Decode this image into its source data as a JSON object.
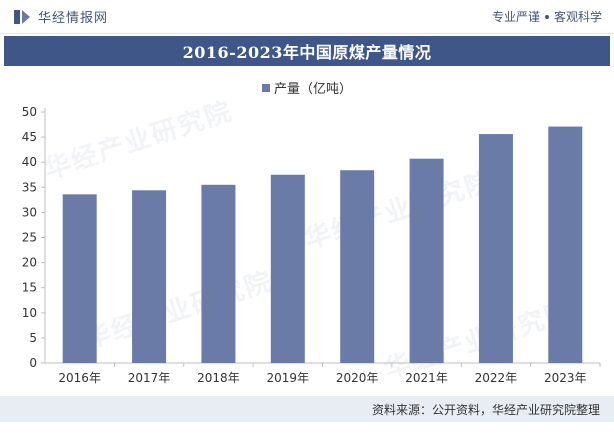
{
  "header": {
    "brand": "华经情报网",
    "tag1": "专业严谨",
    "tag2": "客观科学"
  },
  "title": "2016-2023年中国原煤产量情况",
  "source": "资料来源：公开资料，华经产业研究院整理",
  "watermark": "华经产业研究院",
  "colors": {
    "bar": "#6a7ba7",
    "title_bg": "#3f5689",
    "footer_bg": "#e8ecf3"
  },
  "chart_data": {
    "type": "bar",
    "categories": [
      "2016年",
      "2017年",
      "2018年",
      "2019年",
      "2020年",
      "2021年",
      "2022年",
      "2023年"
    ],
    "series": [
      {
        "name": "产量（亿吨）",
        "values": [
          33.6,
          34.4,
          35.5,
          37.5,
          38.4,
          40.7,
          45.6,
          47.1
        ]
      }
    ],
    "title": "2016-2023年中国原煤产量情况",
    "xlabel": "",
    "ylabel": "",
    "ylim": [
      0,
      50
    ],
    "yticks": [
      0,
      5,
      10,
      15,
      20,
      25,
      30,
      35,
      40,
      45,
      50
    ],
    "legend": "top-center",
    "grid": false
  }
}
